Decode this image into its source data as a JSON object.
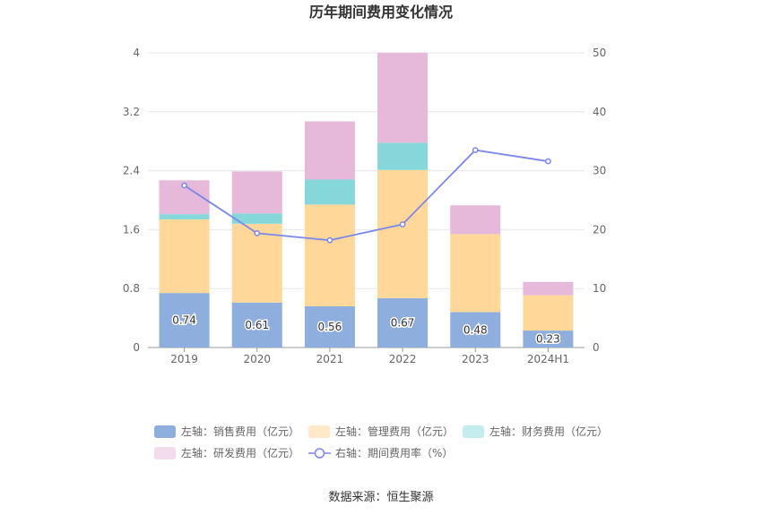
{
  "chart_data": {
    "type": "bar",
    "title": "历年期间费用变化情况",
    "categories": [
      "2019",
      "2020",
      "2021",
      "2022",
      "2023",
      "2024H1"
    ],
    "left_axis": {
      "ticks": [
        "0",
        "0.8",
        "1.6",
        "2.4",
        "3.2",
        "4"
      ],
      "ylim": [
        0,
        4
      ]
    },
    "right_axis": {
      "ticks": [
        "0",
        "10",
        "20",
        "30",
        "40",
        "50"
      ],
      "ylim": [
        0,
        50
      ]
    },
    "series": [
      {
        "name": "左轴：销售费用（亿元）",
        "axis": "left",
        "stack": "fees",
        "color": "#8eaedd",
        "values": [
          0.74,
          0.61,
          0.56,
          0.67,
          0.48,
          0.23
        ],
        "labels": [
          "0.74",
          "0.61",
          "0.56",
          "0.67",
          "0.48",
          "0.23"
        ]
      },
      {
        "name": "左轴：管理费用（亿元）",
        "axis": "left",
        "stack": "fees",
        "color": "#ffd899",
        "values": [
          1.0,
          1.07,
          1.38,
          1.74,
          1.06,
          0.48
        ]
      },
      {
        "name": "左轴：财务费用（亿元）",
        "axis": "left",
        "stack": "fees",
        "color": "#86d7da",
        "values": [
          0.07,
          0.14,
          0.34,
          0.37,
          0.0,
          0.0
        ]
      },
      {
        "name": "左轴：研发费用（亿元）",
        "axis": "left",
        "stack": "fees",
        "color": "#e6b8da",
        "values": [
          0.46,
          0.57,
          0.79,
          1.22,
          0.39,
          0.18
        ]
      },
      {
        "name": "右轴：期间费用率（%）",
        "axis": "right",
        "type": "line",
        "color": "#7b86ea",
        "values": [
          27.5,
          19.4,
          18.2,
          20.9,
          33.5,
          31.6
        ]
      }
    ],
    "source": "数据来源：恒生聚源"
  }
}
